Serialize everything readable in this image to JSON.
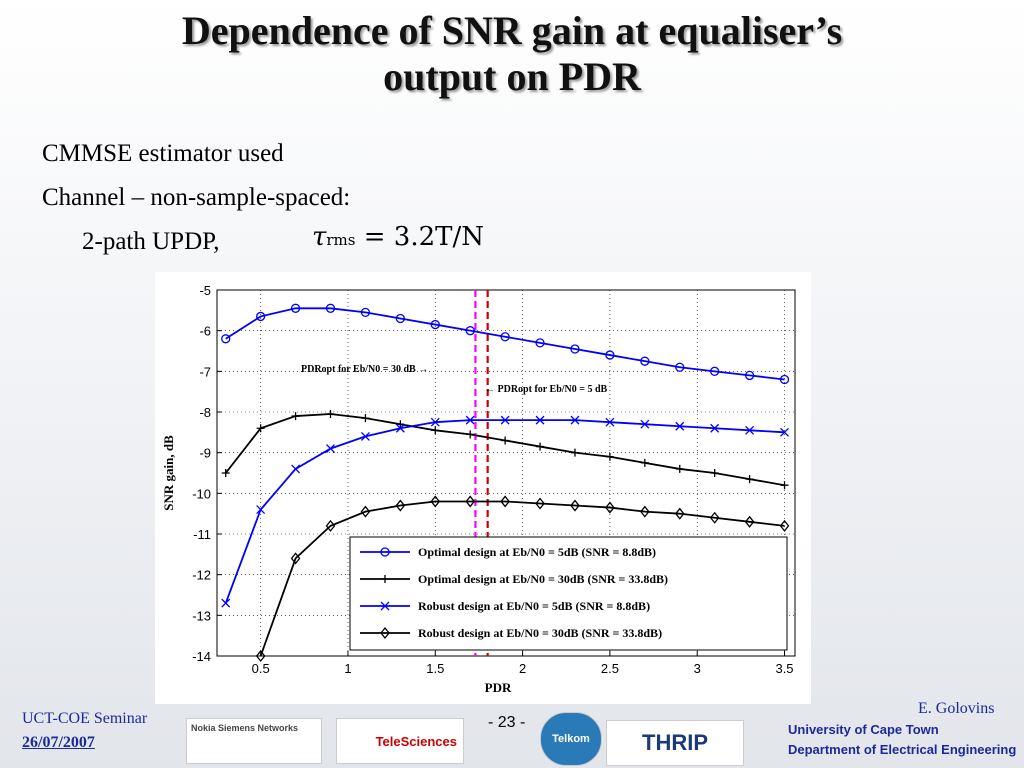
{
  "slide": {
    "title_lines": [
      "Dependence of SNR gain at equaliser’s",
      "output on PDR"
    ],
    "bullets": [
      "CMMSE estimator used",
      "Channel – non-sample-spaced:",
      "2-path UPDP,"
    ],
    "formula": [
      "τ",
      "rms",
      " = 3.2T/N"
    ],
    "footer_left": "UCT-COE Seminar",
    "date": "26/07/2007",
    "page": "- 23 -",
    "author": "E. Golovins",
    "logos": [
      "Nokia Siemens Networks",
      "TeleSciences",
      "Telkom",
      "THRIP",
      "University of Cape Town",
      "Department of Electrical Engineering"
    ]
  },
  "chart_data": {
    "type": "line",
    "xlabel": "PDR",
    "ylabel": "SNR gain, dB",
    "x": [
      0.3,
      0.5,
      0.7,
      0.9,
      1.1,
      1.3,
      1.5,
      1.7,
      1.9,
      2.1,
      2.3,
      2.5,
      2.7,
      2.9,
      3.1,
      3.3,
      3.5
    ],
    "series": [
      {
        "name": "Optimal design at Eb/N0 = 5dB (SNR = 8.8dB)",
        "color": "#0000ff",
        "marker": "circle",
        "values": [
          -6.2,
          -5.65,
          -5.45,
          -5.45,
          -5.55,
          -5.7,
          -5.85,
          -6.0,
          -6.15,
          -6.3,
          -6.45,
          -6.6,
          -6.75,
          -6.9,
          -7.0,
          -7.1,
          -7.2
        ]
      },
      {
        "name": "Optimal design at Eb/N0 = 30dB (SNR = 33.8dB)",
        "color": "#000000",
        "marker": "plus",
        "values": [
          -9.5,
          -8.4,
          -8.1,
          -8.05,
          -8.15,
          -8.3,
          -8.45,
          -8.55,
          -8.7,
          -8.85,
          -9.0,
          -9.1,
          -9.25,
          -9.4,
          -9.5,
          -9.65,
          -9.8
        ]
      },
      {
        "name": "Robust design at Eb/N0 = 5dB (SNR = 8.8dB)",
        "color": "#0000ff",
        "marker": "x",
        "values": [
          -12.7,
          -10.4,
          -9.4,
          -8.9,
          -8.6,
          -8.4,
          -8.25,
          -8.2,
          -8.2,
          -8.2,
          -8.2,
          -8.25,
          -8.3,
          -8.35,
          -8.4,
          -8.45,
          -8.5
        ]
      },
      {
        "name": "Robust design at Eb/N0 = 30dB (SNR = 33.8dB)",
        "color": "#000000",
        "marker": "diamond",
        "values": [
          null,
          -14,
          -11.6,
          -10.8,
          -10.45,
          -10.3,
          -10.2,
          -10.2,
          -10.2,
          -10.25,
          -10.3,
          -10.35,
          -10.45,
          -10.5,
          -10.6,
          -10.7,
          -10.8
        ]
      }
    ],
    "vlines": [
      {
        "x": 1.73,
        "color": "#ff00ff"
      },
      {
        "x": 1.8,
        "color": "#cc0000"
      }
    ],
    "annotations": [
      "PDRopt for Eb/N0 = 30 dB →",
      "← PDRopt for Eb/N0 = 5 dB"
    ],
    "xlim": [
      0.25,
      3.56
    ],
    "ylim": [
      -14,
      -5
    ],
    "xticks": [
      0.5,
      1,
      1.5,
      2,
      2.5,
      3,
      3.5
    ],
    "yticks": [
      -14,
      -13,
      -12,
      -11,
      -10,
      -9,
      -8,
      -7,
      -6,
      -5
    ],
    "grid": true
  }
}
